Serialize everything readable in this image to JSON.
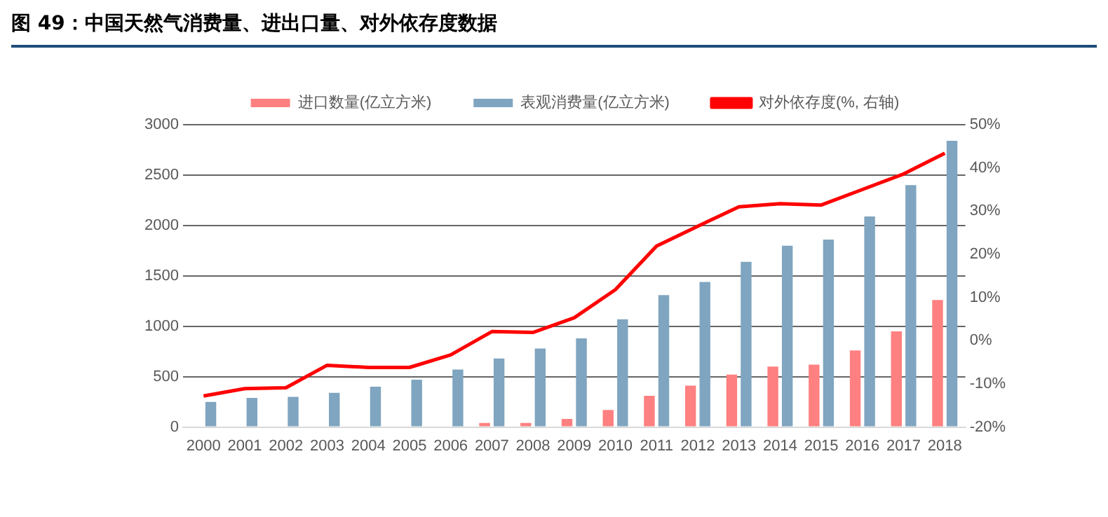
{
  "chart_data": {
    "type": "bar",
    "title": "图  49：中国天然气消费量、进出口量、对外依存度数据",
    "categories": [
      "2000",
      "2001",
      "2002",
      "2003",
      "2004",
      "2005",
      "2006",
      "2007",
      "2008",
      "2009",
      "2010",
      "2011",
      "2012",
      "2013",
      "2014",
      "2015",
      "2016",
      "2017",
      "2018"
    ],
    "series": [
      {
        "name": "进口数量(亿立方米)",
        "color": "#ff8080",
        "values": [
          null,
          null,
          null,
          null,
          null,
          null,
          null,
          40,
          40,
          80,
          170,
          310,
          410,
          520,
          600,
          620,
          760,
          950,
          1260
        ]
      },
      {
        "name": "表观消费量(亿立方米)",
        "color": "#7fa5c0",
        "values": [
          250,
          290,
          300,
          340,
          400,
          470,
          570,
          680,
          780,
          880,
          1070,
          1310,
          1440,
          1640,
          1800,
          1860,
          2090,
          2400,
          2840
        ]
      },
      {
        "name": "对外依存度(%, 右轴)",
        "type": "line",
        "axis": "y2",
        "color": "#ff0000",
        "values": [
          -12.8,
          -11.1,
          -10.9,
          -5.7,
          -6.2,
          -6.2,
          -3.3,
          2.1,
          1.9,
          5.3,
          11.8,
          21.9,
          26.5,
          31,
          31.7,
          31.4,
          35,
          38.6,
          43.4
        ]
      }
    ],
    "ylim": [
      0,
      3000
    ],
    "yticks": [
      0,
      500,
      1000,
      1500,
      2000,
      2500,
      3000
    ],
    "y2lim": [
      -20,
      50
    ],
    "y2ticks": [
      {
        "value": -20,
        "label": "-20%"
      },
      {
        "value": -10,
        "label": "-10%"
      },
      {
        "value": 0,
        "label": "0%"
      },
      {
        "value": 10,
        "label": "10%"
      },
      {
        "value": 20,
        "label": "20%"
      },
      {
        "value": 30,
        "label": "30%"
      },
      {
        "value": 40,
        "label": "40%"
      },
      {
        "value": 50,
        "label": "50%"
      }
    ],
    "grid": "y",
    "legend": "top",
    "marker": "none",
    "line_style": "solid"
  }
}
